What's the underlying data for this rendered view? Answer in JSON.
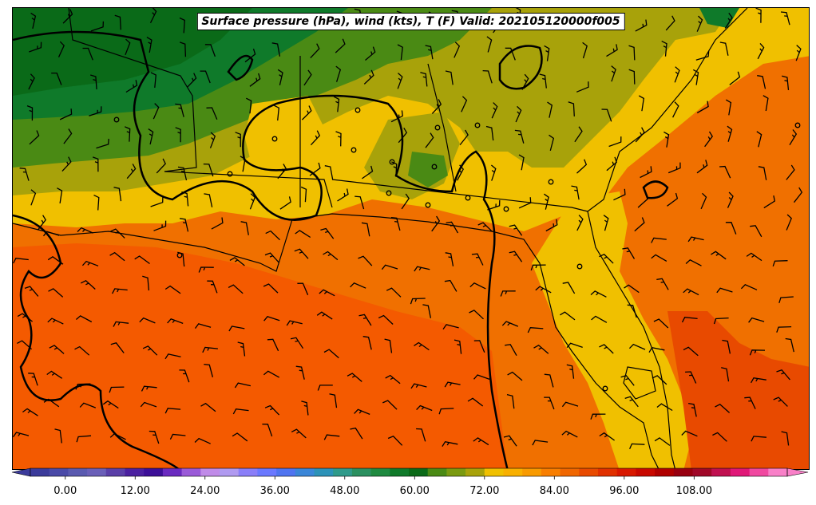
{
  "map": {
    "title": "Surface pressure (hPa), wind (kts), T (F) Valid: 202105120000f005"
  },
  "colorbar": {
    "tick_labels": [
      "0.00",
      "12.00",
      "24.00",
      "36.00",
      "48.00",
      "60.00",
      "72.00",
      "84.00",
      "96.00",
      "108.00"
    ],
    "tick_values": [
      0,
      12,
      24,
      36,
      48,
      60,
      72,
      84,
      96,
      108
    ],
    "min": -6,
    "max": 124,
    "colors": [
      "#3b3b9b",
      "#4a4aa8",
      "#5a5ab0",
      "#6a5fb8",
      "#5a3fa8",
      "#4b20a0",
      "#3c0f98",
      "#6a2ac0",
      "#9a5ad8",
      "#c08be8",
      "#b09af0",
      "#8a7ef8",
      "#6a78ff",
      "#4f74f0",
      "#3a86d8",
      "#2c92b8",
      "#2f9a8a",
      "#2b9060",
      "#1f8a40",
      "#0f7a2a",
      "#0a6a18",
      "#4a8a14",
      "#7a9a10",
      "#a8a20a",
      "#f0c000",
      "#f8b000",
      "#f89a00",
      "#f87e00",
      "#f06600",
      "#e84a00",
      "#e03000",
      "#d81800",
      "#c80800",
      "#b00000",
      "#980010",
      "#a00828",
      "#c01050",
      "#e01878",
      "#f048a0",
      "#f880c8"
    ]
  },
  "legend_semantics": {
    "temperature_fill": "T (F)",
    "contours": "Surface pressure (hPa)",
    "barbs": "wind (kts)"
  }
}
